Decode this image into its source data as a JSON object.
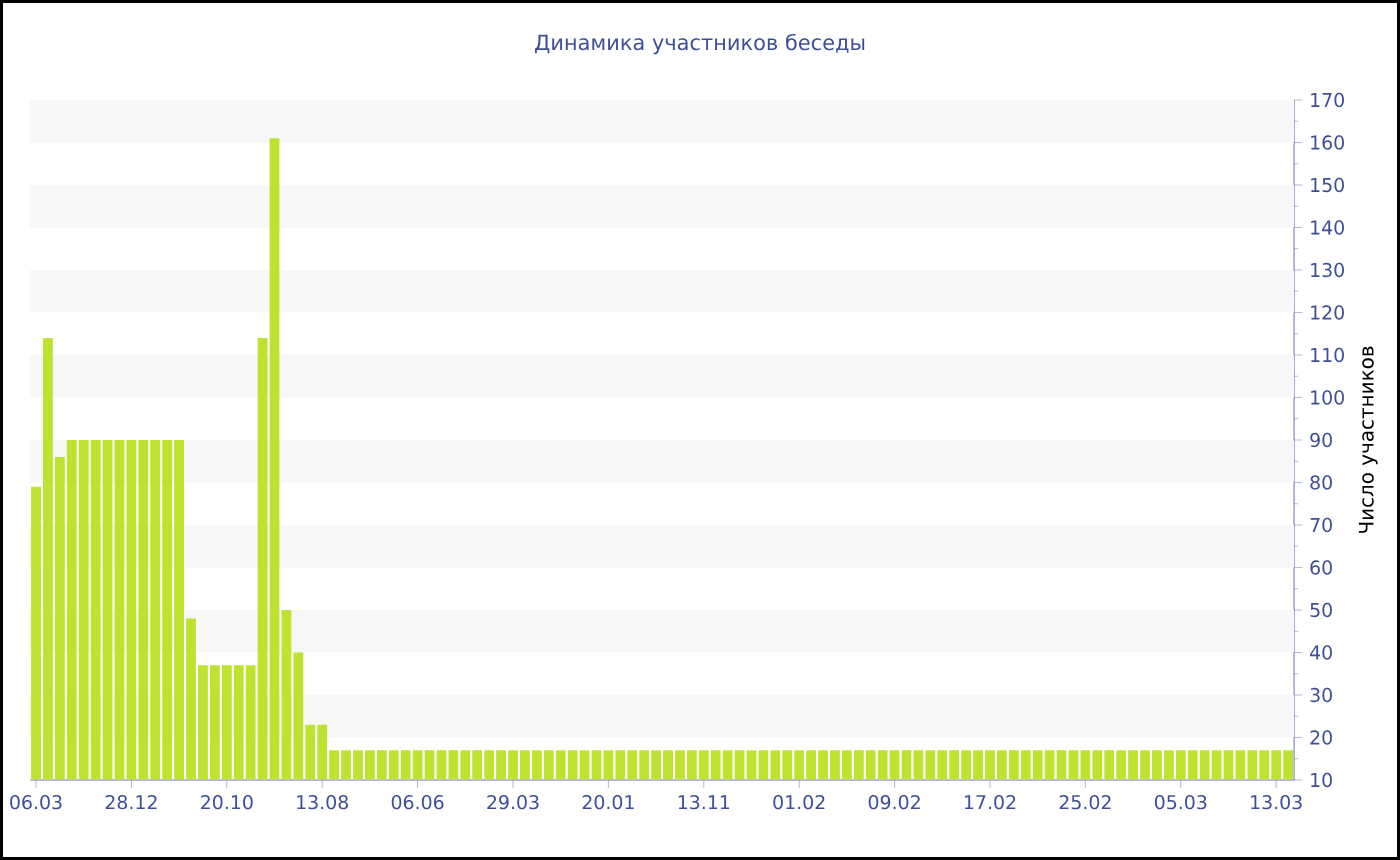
{
  "chart_data": {
    "type": "bar",
    "title": "Динамика участников беседы",
    "ylabel": "Число участников",
    "categories": [
      "06.03",
      null,
      null,
      null,
      null,
      null,
      null,
      null,
      "28.12",
      null,
      null,
      null,
      null,
      null,
      null,
      null,
      "20.10",
      null,
      null,
      null,
      null,
      null,
      null,
      null,
      "13.08",
      null,
      null,
      null,
      null,
      null,
      null,
      null,
      "06.06",
      null,
      null,
      null,
      null,
      null,
      null,
      null,
      "29.03",
      null,
      null,
      null,
      null,
      null,
      null,
      null,
      "20.01",
      null,
      null,
      null,
      null,
      null,
      null,
      null,
      "13.11",
      null,
      null,
      null,
      null,
      null,
      null,
      null,
      "01.02",
      null,
      null,
      null,
      null,
      null,
      null,
      null,
      "09.02",
      null,
      null,
      null,
      null,
      null,
      null,
      null,
      "17.02",
      null,
      null,
      null,
      null,
      null,
      null,
      null,
      "25.02",
      null,
      null,
      null,
      null,
      null,
      null,
      null,
      "05.03",
      null,
      null,
      null,
      null,
      null,
      null,
      null,
      "13.03",
      null
    ],
    "values": [
      79,
      114,
      86,
      90,
      90,
      90,
      90,
      90,
      90,
      90,
      90,
      90,
      90,
      48,
      37,
      37,
      37,
      37,
      37,
      114,
      161,
      50,
      40,
      23,
      23,
      17,
      17,
      17,
      17,
      17,
      17,
      17,
      17,
      17,
      17,
      17,
      17,
      17,
      17,
      17,
      17,
      17,
      17,
      17,
      17,
      17,
      17,
      17,
      17,
      17,
      17,
      17,
      17,
      17,
      17,
      17,
      17,
      17,
      17,
      17,
      17,
      17,
      17,
      17,
      17,
      17,
      17,
      17,
      17,
      17,
      17,
      17,
      17,
      17,
      17,
      17,
      17,
      17,
      17,
      17,
      17,
      17,
      17,
      17,
      17,
      17,
      17,
      17,
      17,
      17,
      17,
      17,
      17,
      17,
      17,
      17,
      17,
      17,
      17,
      17,
      17,
      17,
      17,
      17,
      17,
      17
    ],
    "color": "#bde22f",
    "ylim": [
      10,
      170
    ],
    "yticks": [
      10,
      20,
      30,
      40,
      50,
      60,
      70,
      80,
      90,
      100,
      110,
      120,
      130,
      140,
      150,
      160,
      170
    ]
  }
}
